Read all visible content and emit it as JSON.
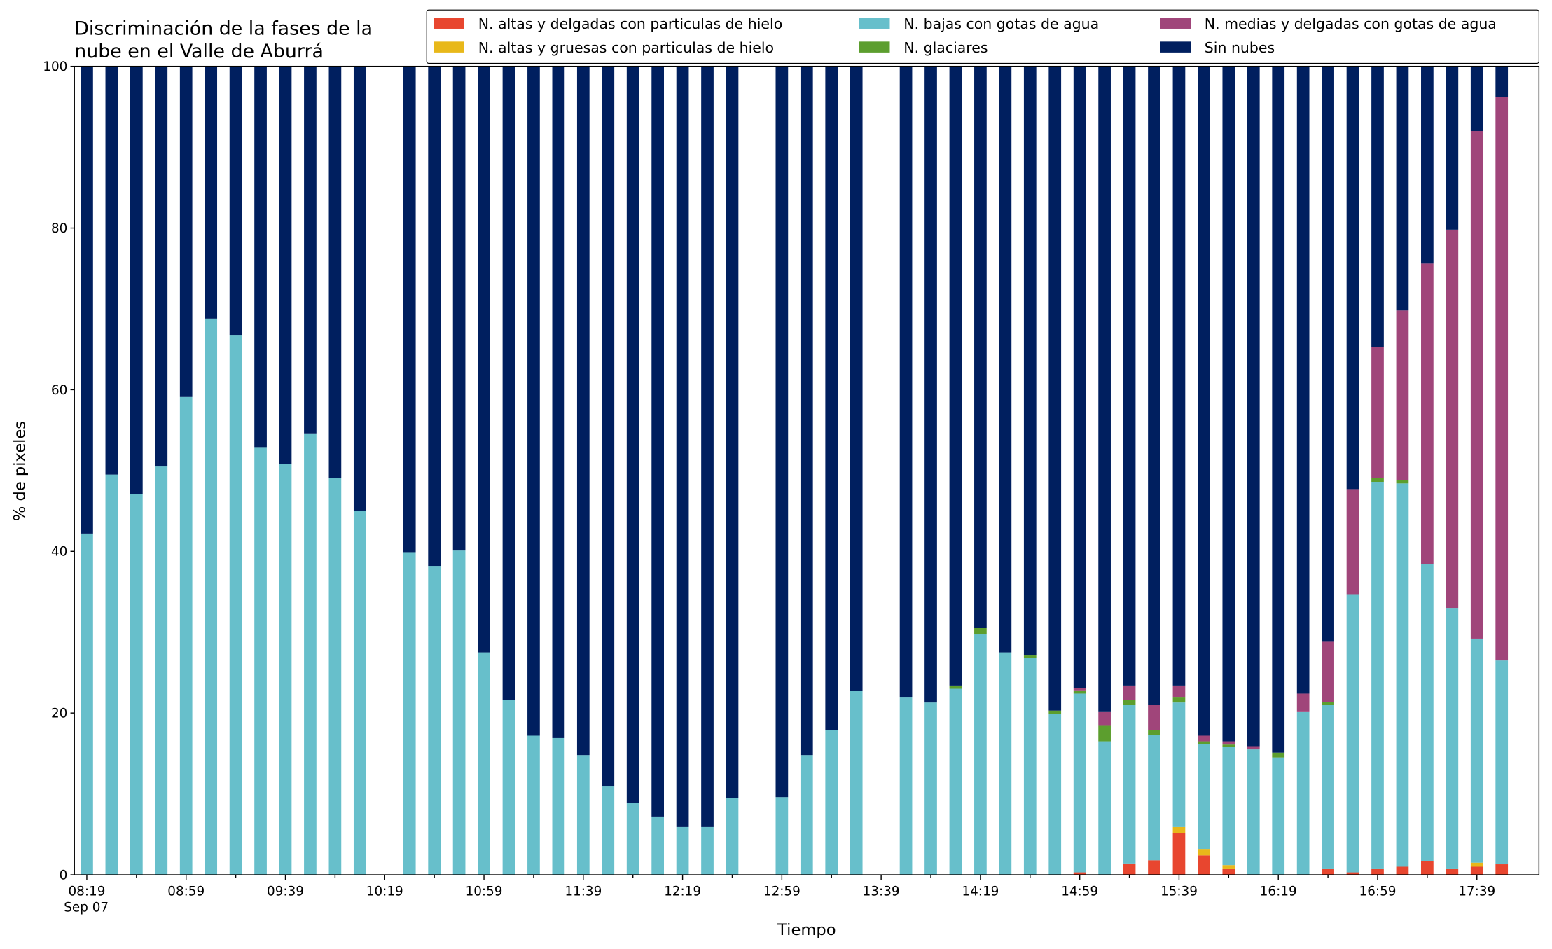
{
  "chart_data": {
    "type": "stacked_bar",
    "title": [
      "Discriminación de la fases de la",
      "nube en el Valle de Aburrá"
    ],
    "xlabel": "Tiempo",
    "ylabel": "% de pixeles",
    "x_sublabel": "Sep 07",
    "categories": [
      "08:19",
      null,
      null,
      null,
      "08:59",
      null,
      null,
      null,
      "09:39",
      null,
      null,
      null,
      "10:19",
      null,
      null,
      null,
      "10:59",
      null,
      null,
      null,
      "11:39",
      null,
      null,
      null,
      "12:19",
      null,
      null,
      null,
      "12:59",
      null,
      null,
      null,
      "13:39",
      null,
      null,
      null,
      "14:19",
      null,
      null,
      null,
      "14:59",
      null,
      null,
      null,
      "15:39",
      null,
      null,
      null,
      "16:19",
      null,
      null,
      null,
      "16:59",
      null,
      null,
      null,
      "17:39",
      null
    ],
    "ylim": [
      0,
      100
    ],
    "yticks": [
      0,
      20,
      40,
      60,
      80,
      100
    ],
    "legend": "upper right",
    "series": [
      {
        "name": "N. altas y delgadas con particulas de hielo",
        "color": "#e8462f",
        "values": [
          0,
          0,
          0,
          0,
          0,
          0,
          0,
          0,
          0,
          0,
          0,
          0,
          null,
          0,
          0,
          0,
          0,
          0,
          0,
          0,
          0,
          0,
          0,
          0,
          0,
          0,
          0,
          null,
          0,
          0,
          0,
          0,
          null,
          0,
          0,
          0,
          0,
          0,
          0,
          0,
          0.3,
          0,
          1.4,
          1.8,
          5.2,
          2.4,
          0.7,
          0,
          0,
          0,
          0.7,
          0.3,
          0.7,
          1.0,
          1.7,
          0.7,
          1.0,
          1.3
        ]
      },
      {
        "name": "N. altas y gruesas con particulas de hielo",
        "color": "#e8b81a",
        "values": [
          0,
          0,
          0,
          0,
          0,
          0,
          0,
          0,
          0,
          0,
          0,
          0,
          null,
          0,
          0,
          0,
          0,
          0,
          0,
          0,
          0,
          0,
          0,
          0,
          0,
          0,
          0,
          null,
          0,
          0,
          0,
          0,
          null,
          0,
          0,
          0,
          0,
          0,
          0,
          0,
          0,
          0,
          0,
          0,
          0.7,
          0.8,
          0.5,
          0,
          0,
          0,
          0,
          0,
          0,
          0,
          0,
          0,
          0.5,
          0
        ]
      },
      {
        "name": "N. bajas con gotas de agua",
        "color": "#67bfcb",
        "values": [
          42.2,
          49.5,
          47.1,
          50.5,
          59.1,
          68.8,
          66.7,
          52.9,
          50.8,
          54.6,
          49.1,
          45.0,
          null,
          39.9,
          38.2,
          40.1,
          27.5,
          21.6,
          17.2,
          16.9,
          14.8,
          11.0,
          8.9,
          7.2,
          5.9,
          5.9,
          9.5,
          null,
          9.6,
          14.8,
          17.9,
          22.7,
          null,
          22.0,
          21.3,
          23.0,
          29.8,
          27.5,
          26.8,
          19.9,
          22.1,
          16.5,
          19.6,
          15.5,
          15.4,
          13.0,
          14.6,
          15.5,
          14.5,
          20.2,
          20.3,
          34.4,
          47.9,
          47.4,
          36.7,
          32.3,
          27.7,
          25.2
        ]
      },
      {
        "name": "N. glaciares",
        "color": "#5c9e2e",
        "values": [
          0,
          0,
          0,
          0,
          0,
          0,
          0,
          0,
          0,
          0,
          0,
          0,
          null,
          0,
          0,
          0,
          0,
          0,
          0,
          0,
          0,
          0,
          0,
          0,
          0,
          0,
          0,
          null,
          0,
          0,
          0,
          0,
          null,
          0,
          0,
          0.4,
          0.7,
          0,
          0.4,
          0.4,
          0.4,
          2.0,
          0.6,
          0.6,
          0.7,
          0.3,
          0.3,
          0,
          0.6,
          0,
          0.4,
          0,
          0.5,
          0.4,
          0,
          0,
          0,
          0
        ]
      },
      {
        "name": "N. medias y delgadas con gotas de agua",
        "color": "#a0457a",
        "values": [
          0,
          0,
          0,
          0,
          0,
          0,
          0,
          0,
          0,
          0,
          0,
          0,
          null,
          0,
          0,
          0,
          0,
          0,
          0,
          0,
          0,
          0,
          0,
          0,
          0,
          0,
          0,
          null,
          0,
          0,
          0,
          0,
          null,
          0,
          0,
          0,
          0,
          0,
          0,
          0,
          0.3,
          1.7,
          1.8,
          3.1,
          1.4,
          0.7,
          0.4,
          0.4,
          0,
          2.2,
          7.5,
          13.0,
          16.2,
          21.0,
          37.2,
          46.8,
          62.8,
          69.7
        ]
      },
      {
        "name": "Sin nubes",
        "color": "#001f5f",
        "values": [
          57.8,
          50.5,
          52.9,
          49.5,
          40.9,
          31.2,
          33.3,
          47.1,
          49.2,
          45.4,
          50.9,
          55.0,
          null,
          60.1,
          61.8,
          59.9,
          72.5,
          78.4,
          82.8,
          83.1,
          85.2,
          89.0,
          91.1,
          92.8,
          94.1,
          94.1,
          90.5,
          null,
          90.4,
          85.2,
          82.1,
          77.3,
          null,
          78.0,
          78.7,
          76.6,
          69.5,
          72.5,
          72.8,
          79.7,
          76.9,
          79.8,
          76.6,
          79.0,
          76.6,
          82.8,
          83.5,
          84.1,
          84.9,
          77.6,
          71.1,
          52.3,
          34.7,
          30.2,
          24.4,
          20.2,
          8.0,
          3.8
        ]
      }
    ]
  }
}
